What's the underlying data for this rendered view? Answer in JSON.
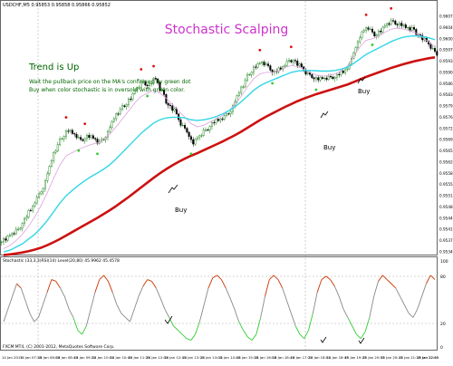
{
  "window": {
    "symbol_line": "USDCHF,M5 0.95853 0.95858 0.95866 0.95852",
    "title": "Stochastic Scalping"
  },
  "annotations": {
    "headline": "Trend is Up",
    "line1": "Wait the pullback price on the MA's confirmed by green dot",
    "line2": "Buy when color stochastic is in oversold with green color.",
    "buy_labels": [
      "Buy",
      "Buy",
      "Buy"
    ]
  },
  "indicator": {
    "label": "Stochastic (33,3,3)RSI(14) Level(20,80) 45.9962 45.4578",
    "levels": [
      20,
      80
    ],
    "axis_labels": [
      "100",
      "80",
      "20",
      "0"
    ]
  },
  "footer": {
    "copyright": "FXCM MT4, (C) 2001-2012, MetaQuotes Software Corp."
  },
  "price_axis": [
    "0.96075",
    "0.96040",
    "0.96005",
    "0.95970",
    "0.95935",
    "0.95900",
    "0.95865",
    "0.95830",
    "0.95795",
    "0.95760",
    "0.95725",
    "0.95690",
    "0.95655",
    "0.95620",
    "0.95585",
    "0.95550",
    "0.95515",
    "0.95480",
    "0.95445",
    "0.95410",
    "0.95375",
    "0.95340"
  ],
  "time_axis": [
    "14 Jan 2013",
    "14 Jan 07:25",
    "14 Jan 08:05",
    "14 Jan 08:45",
    "14 Jan 09:25",
    "14 Jan 10:05",
    "14 Jan 10:45",
    "14 Jan 11:25",
    "14 Jan 12:05",
    "14 Jan 12:45",
    "14 Jan 13:25",
    "14 Jan 14:05",
    "14 Jan 14:45",
    "14 Jan 15:25",
    "14 Jan 16:05",
    "14 Jan 16:45",
    "14 Jan 17:25",
    "14 Jan 18:05",
    "14 Jan 18:45",
    "15 Jan 19:25",
    "15 Jan 20:05",
    "15 Jan 20:45",
    "15 Jan 21:25",
    "15 Jan 22:05",
    "15 Jan 22:45"
  ],
  "colors": {
    "bull_candle": "#0a7a0a",
    "bear_candle": "#000000",
    "ma_fast": "#dda0dd",
    "ma_mid": "#33d6e6",
    "ma_slow": "#cc1111",
    "dot_up": "#33cc33",
    "dot_down": "#dd1111",
    "stoch_up": "#cc3300",
    "stoch_down": "#33cc33",
    "stoch_mid": "#888888"
  },
  "series": {
    "closes": [
      0.9538,
      0.95395,
      0.9541,
      0.9544,
      0.9547,
      0.95505,
      0.9554,
      0.956,
      0.9566,
      0.957,
      0.9572,
      0.95705,
      0.9569,
      0.957,
      0.95695,
      0.9568,
      0.957,
      0.9574,
      0.95775,
      0.958,
      0.9582,
      0.9585,
      0.9587,
      0.9586,
      0.9588,
      0.9584,
      0.958,
      0.9578,
      0.9574,
      0.9572,
      0.9568,
      0.957,
      0.9572,
      0.9574,
      0.9575,
      0.9576,
      0.9578,
      0.9582,
      0.9586,
      0.959,
      0.9592,
      0.9593,
      0.9592,
      0.959,
      0.9591,
      0.9593,
      0.9594,
      0.9592,
      0.959,
      0.9589,
      0.9588,
      0.9588,
      0.95885,
      0.9589,
      0.959,
      0.9592,
      0.9598,
      0.9602,
      0.9604,
      0.9602,
      0.9603,
      0.9605,
      0.9606,
      0.9605,
      0.9604,
      0.96035,
      0.9602,
      0.96,
      0.9598,
      0.9596
    ],
    "ma_fast": [
      0.9535,
      0.9536,
      0.95375,
      0.95395,
      0.9542,
      0.9545,
      0.95485,
      0.95525,
      0.9557,
      0.9561,
      0.9564,
      0.9565,
      0.9566,
      0.95668,
      0.95675,
      0.9568,
      0.9569,
      0.95708,
      0.9573,
      0.95755,
      0.9578,
      0.95805,
      0.95825,
      0.95835,
      0.95845,
      0.95835,
      0.9582,
      0.958,
      0.9578,
      0.9576,
      0.9574,
      0.9573,
      0.95735,
      0.95745,
      0.95755,
      0.95765,
      0.9578,
      0.958,
      0.95825,
      0.95855,
      0.9588,
      0.95895,
      0.959,
      0.959,
      0.95905,
      0.95915,
      0.95922,
      0.95918,
      0.9591,
      0.959,
      0.95892,
      0.95888,
      0.9589,
      0.95895,
      0.95905,
      0.9592,
      0.9595,
      0.9598,
      0.96,
      0.96005,
      0.96012,
      0.96025,
      0.96035,
      0.96038,
      0.96035,
      0.9603,
      0.96022,
      0.9601,
      0.95995,
      0.9598
    ],
    "ma_mid": [
      0.9534,
      0.95345,
      0.95355,
      0.95365,
      0.9538,
      0.95395,
      0.95415,
      0.95438,
      0.95465,
      0.95492,
      0.95515,
      0.95532,
      0.95548,
      0.95562,
      0.95575,
      0.95586,
      0.95598,
      0.95612,
      0.9563,
      0.9565,
      0.9567,
      0.9569,
      0.9571,
      0.95726,
      0.95742,
      0.95752,
      0.95758,
      0.9576,
      0.9576,
      0.95758,
      0.95752,
      0.9575,
      0.95752,
      0.95756,
      0.95762,
      0.9577,
      0.9578,
      0.95792,
      0.95808,
      0.95826,
      0.95844,
      0.95858,
      0.95868,
      0.95876,
      0.95884,
      0.95892,
      0.959,
      0.95904,
      0.95906,
      0.95906,
      0.95905,
      0.95904,
      0.95904,
      0.95906,
      0.9591,
      0.95916,
      0.95928,
      0.95942,
      0.95956,
      0.95966,
      0.95976,
      0.95986,
      0.95996,
      0.96004,
      0.9601,
      0.96013,
      0.96014,
      0.96012,
      0.96008,
      0.96002
    ],
    "ma_slow": [
      0.9533,
      0.95332,
      0.95335,
      0.95338,
      0.95342,
      0.95347,
      0.95353,
      0.95361,
      0.9537,
      0.9538,
      0.95391,
      0.95402,
      0.95413,
      0.95424,
      0.95435,
      0.95446,
      0.95458,
      0.9547,
      0.95483,
      0.95497,
      0.95511,
      0.95526,
      0.95541,
      0.95556,
      0.95571,
      0.95585,
      0.95598,
      0.9561,
      0.95621,
      0.95631,
      0.9564,
      0.95648,
      0.95657,
      0.95666,
      0.95675,
      0.95684,
      0.95694,
      0.95704,
      0.95715,
      0.95727,
      0.95739,
      0.95751,
      0.95762,
      0.95772,
      0.95782,
      0.95792,
      0.95801,
      0.9581,
      0.95818,
      0.95825,
      0.95832,
      0.95838,
      0.95844,
      0.9585,
      0.95856,
      0.95862,
      0.9587,
      0.95878,
      0.95886,
      0.95893,
      0.959,
      0.95907,
      0.95914,
      0.9592,
      0.95926,
      0.95931,
      0.95936,
      0.9594,
      0.95944,
      0.95947
    ],
    "stoch": [
      30,
      45,
      60,
      75,
      70,
      55,
      40,
      30,
      35,
      50,
      65,
      80,
      78,
      70,
      60,
      45,
      35,
      20,
      15,
      25,
      45,
      65,
      80,
      85,
      78,
      65,
      50,
      40,
      35,
      30,
      45,
      60,
      72,
      80,
      78,
      70,
      58,
      45,
      35,
      25,
      20,
      15,
      10,
      8,
      15,
      30,
      50,
      70,
      82,
      85,
      80,
      70,
      58,
      45,
      30,
      20,
      12,
      8,
      15,
      35,
      60,
      80,
      85,
      80,
      70,
      55,
      40,
      25,
      15,
      10,
      20,
      40,
      65,
      80,
      84,
      80,
      72,
      60,
      45,
      35,
      25,
      15,
      10,
      18,
      35,
      60,
      78,
      85,
      80,
      75,
      70,
      60,
      50,
      40,
      35,
      45,
      60,
      75,
      85,
      80
    ]
  }
}
